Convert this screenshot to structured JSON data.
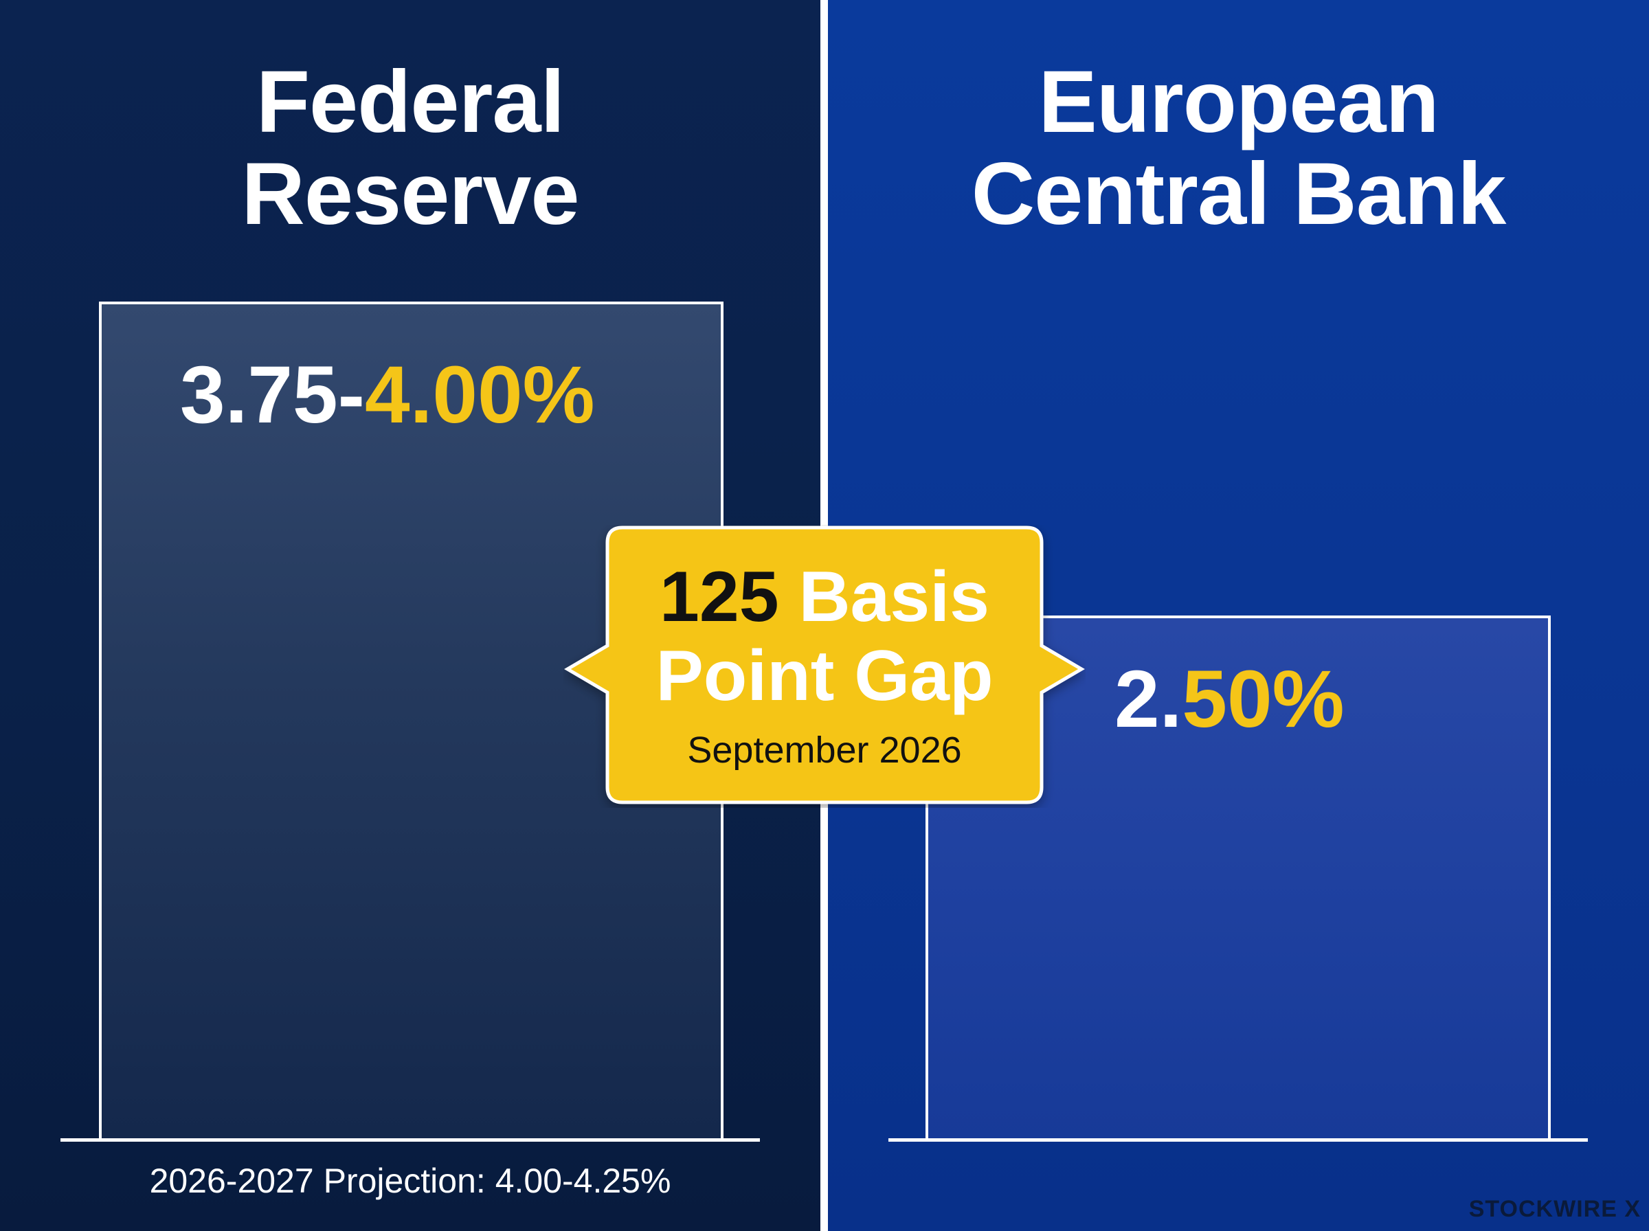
{
  "chart_data": {
    "type": "bar",
    "categories": [
      "Federal Reserve",
      "European Central Bank"
    ],
    "values": [
      4.0,
      2.5
    ],
    "labels": [
      {
        "main": "3.75-",
        "accent": "4.00%"
      },
      {
        "main": "2.",
        "accent": "50%"
      }
    ],
    "title": "",
    "xlabel": "",
    "ylabel": ""
  },
  "panels": {
    "fed": {
      "title_line1": "Federal",
      "title_line2": "Reserve"
    },
    "ecb": {
      "title_line1": "European",
      "title_line2": "Central Bank"
    }
  },
  "callout": {
    "number": "125",
    "word": "Basis",
    "line2": "Point Gap",
    "date": "September 2026"
  },
  "projection": "2026-2027 Projection: 4.00-4.25%",
  "watermark": "STOCKWIRE X",
  "colors": {
    "accent": "#f5c518",
    "fed_panel": "#0a2149",
    "ecb_panel": "#0a3592",
    "callout": "#f5c518"
  }
}
